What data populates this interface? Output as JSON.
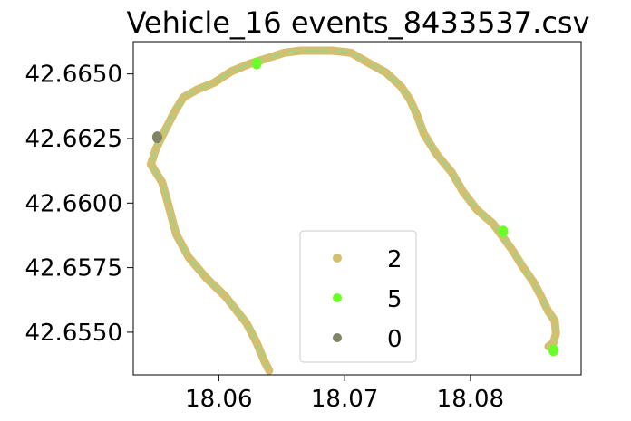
{
  "chart_data": {
    "type": "scatter",
    "title": "Vehicle_16 events_8433537.csv",
    "xlabel": "",
    "ylabel": "",
    "xlim": [
      18.0532,
      18.0888
    ],
    "ylim": [
      42.65335,
      42.66625
    ],
    "x_ticks": [
      {
        "value": 18.06,
        "label": "18.06"
      },
      {
        "value": 18.07,
        "label": "18.07"
      },
      {
        "value": 18.08,
        "label": "18.08"
      }
    ],
    "y_ticks": [
      {
        "value": 42.655,
        "label": "42.6550"
      },
      {
        "value": 42.6575,
        "label": "42.6575"
      },
      {
        "value": 42.66,
        "label": "42.6600"
      },
      {
        "value": 42.6625,
        "label": "42.6625"
      },
      {
        "value": 42.665,
        "label": "42.6650"
      }
    ],
    "grid": false,
    "legend_placement": "lower-center",
    "series": [
      {
        "name": "2",
        "color": "#d4bf6f",
        "trace_color": "#a8cf86",
        "points": [
          [
            18.064,
            42.65352
          ],
          [
            18.0636,
            42.6539
          ],
          [
            18.063,
            42.6546
          ],
          [
            18.0622,
            42.65535
          ],
          [
            18.0605,
            42.6564
          ],
          [
            18.059,
            42.6571
          ],
          [
            18.0576,
            42.6579
          ],
          [
            18.0566,
            42.6588
          ],
          [
            18.056,
            42.6599
          ],
          [
            18.0555,
            42.6608
          ],
          [
            18.0546,
            42.6615
          ],
          [
            18.055,
            42.6621
          ],
          [
            18.0555,
            42.6626
          ],
          [
            18.0565,
            42.66355
          ],
          [
            18.0572,
            42.6641
          ],
          [
            18.0583,
            42.6644
          ],
          [
            18.0596,
            42.66465
          ],
          [
            18.061,
            42.6651
          ],
          [
            18.0625,
            42.6654
          ],
          [
            18.0638,
            42.6656
          ],
          [
            18.0652,
            42.66582
          ],
          [
            18.0665,
            42.6659
          ],
          [
            18.069,
            42.6659
          ],
          [
            18.0705,
            42.66582
          ],
          [
            18.0718,
            42.66545
          ],
          [
            18.0733,
            42.66505
          ],
          [
            18.0745,
            42.6645
          ],
          [
            18.0752,
            42.664
          ],
          [
            18.0758,
            42.66335
          ],
          [
            18.0763,
            42.66268
          ],
          [
            18.0773,
            42.6619
          ],
          [
            18.0785,
            42.6612
          ],
          [
            18.0794,
            42.66045
          ],
          [
            18.0805,
            42.65975
          ],
          [
            18.0818,
            42.6592
          ],
          [
            18.0833,
            42.6582
          ],
          [
            18.0842,
            42.6575
          ],
          [
            18.085,
            42.65695
          ],
          [
            18.0856,
            42.6564
          ],
          [
            18.0862,
            42.6558
          ],
          [
            18.0867,
            42.65545
          ],
          [
            18.0868,
            42.65495
          ],
          [
            18.0866,
            42.65458
          ],
          [
            18.0862,
            42.65445
          ]
        ]
      },
      {
        "name": "5",
        "color": "#6aff26",
        "trace_color": "#6aff26",
        "points": [
          [
            18.063,
            42.6654
          ],
          [
            18.0826,
            42.6589
          ],
          [
            18.0866,
            42.6543
          ]
        ]
      },
      {
        "name": "0",
        "color": "#7f8566",
        "trace_color": "#7f8566",
        "points": [
          [
            18.0551,
            42.66255
          ]
        ]
      }
    ]
  }
}
